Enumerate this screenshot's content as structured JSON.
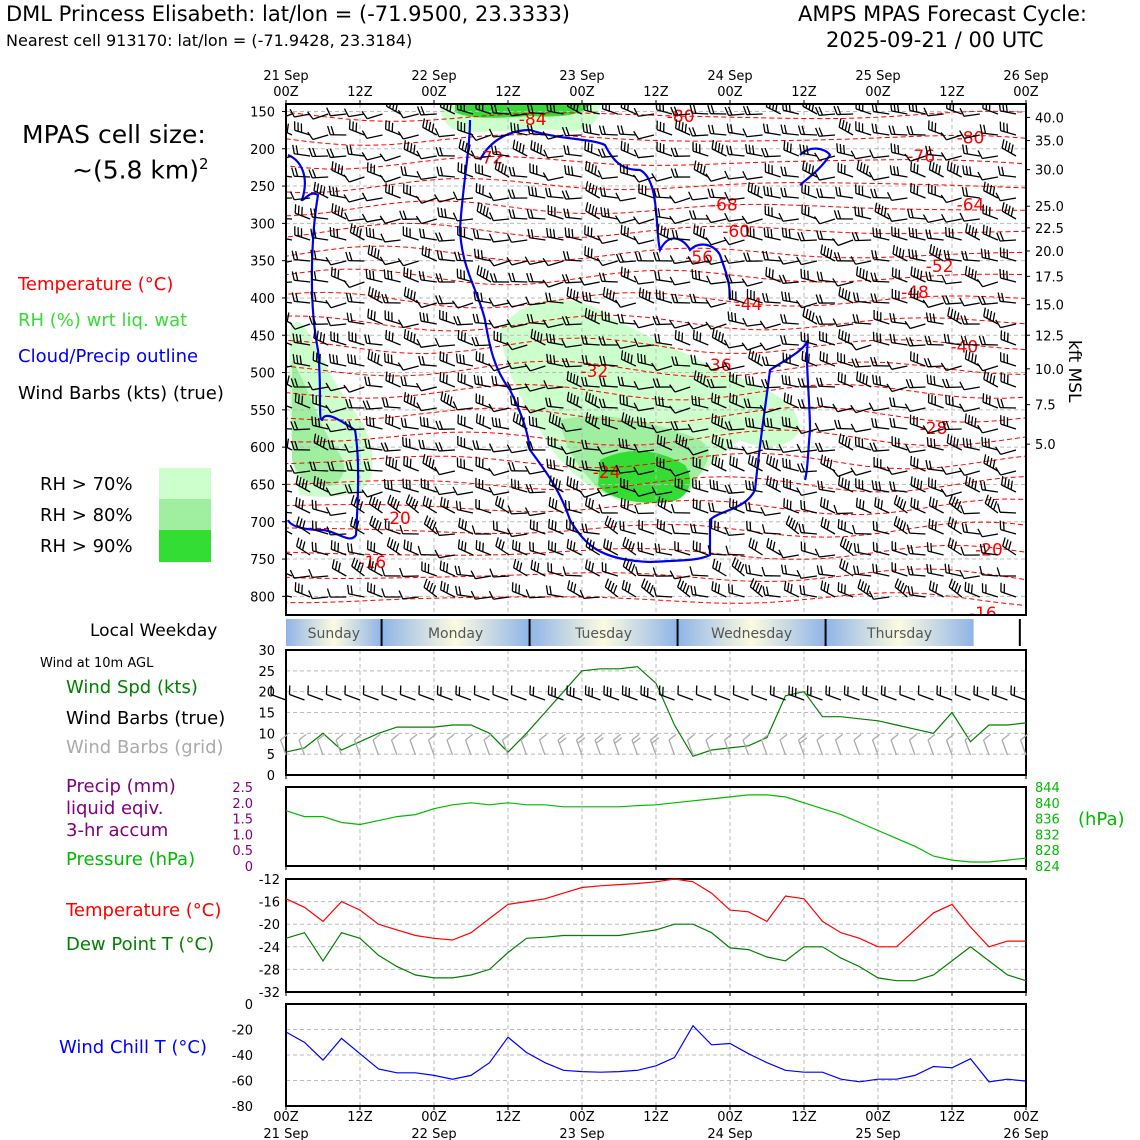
{
  "header": {
    "station": "DML Princess Elisabeth: lat/lon = (-71.9500, 23.3333)",
    "nearest": "Nearest cell 913170: lat/lon = (-71.9428, 23.3184)",
    "cycle_title": "AMPS MPAS Forecast Cycle:",
    "cycle_date": "2025-09-21 / 00 UTC"
  },
  "legend": {
    "cell_size_label": "MPAS cell size:",
    "cell_size_value": "~(5.8 km)",
    "cell_size_exp": "2",
    "temperature": "Temperature (°C)",
    "rh": "RH (%) wrt liq. wat",
    "cloud": "Cloud/Precip outline",
    "barbs": "Wind Barbs (kts) (true)",
    "rh70": "RH > 70%",
    "rh80": "RH > 80%",
    "rh90": "RH > 90%",
    "local_weekday": "Local Weekday",
    "wind_10m": "Wind at 10m AGL",
    "wind_spd": "Wind Spd (kts)",
    "wind_barbs_true": "Wind Barbs (true)",
    "wind_barbs_grid": "Wind Barbs (grid)",
    "precip1": "Precip (mm)",
    "precip2": "liquid eqiv.",
    "precip3": "3-hr accum",
    "pressure": "Pressure (hPa)",
    "pressure_unit": "(hPa)",
    "temp2": "Temperature (°C)",
    "dew": "Dew Point T (°C)",
    "windchill": "Wind Chill T (°C)",
    "kft": "kft MSL"
  },
  "colors": {
    "temp": "#ff0000",
    "rh70": "#ccffcc",
    "rh80": "#a0eea0",
    "rh90": "#33dd33",
    "cloud": "#0000ee",
    "wind": "#008000",
    "precip": "#800080",
    "pressure": "#00bb00",
    "dew": "#008000",
    "chill": "#0000ff"
  },
  "chart_data": [
    {
      "type": "heatmap",
      "title": "Vertical time section",
      "top_ticks": [
        {
          "l1": "21 Sep",
          "l2": "00Z",
          "h": 0
        },
        {
          "l1": "",
          "l2": "12Z",
          "h": 12
        },
        {
          "l1": "22 Sep",
          "l2": "00Z",
          "h": 24
        },
        {
          "l1": "",
          "l2": "12Z",
          "h": 36
        },
        {
          "l1": "23 Sep",
          "l2": "00Z",
          "h": 48
        },
        {
          "l1": "",
          "l2": "12Z",
          "h": 60
        },
        {
          "l1": "24 Sep",
          "l2": "00Z",
          "h": 72
        },
        {
          "l1": "",
          "l2": "12Z",
          "h": 84
        },
        {
          "l1": "25 Sep",
          "l2": "00Z",
          "h": 96
        },
        {
          "l1": "",
          "l2": "12Z",
          "h": 108
        },
        {
          "l1": "26 Sep",
          "l2": "00Z",
          "h": 120
        }
      ],
      "pressure_levels": [
        150,
        200,
        250,
        300,
        350,
        400,
        450,
        500,
        550,
        600,
        650,
        700,
        750,
        800
      ],
      "ylim_hpa": [
        140,
        825
      ],
      "kft_ticks": [
        {
          "label": "40.0",
          "p": 158
        },
        {
          "label": "35.0",
          "p": 189
        },
        {
          "label": "30.0",
          "p": 228
        },
        {
          "label": "25.0",
          "p": 277
        },
        {
          "label": "22.5",
          "p": 306
        },
        {
          "label": "20.0",
          "p": 337
        },
        {
          "label": "17.5",
          "p": 371
        },
        {
          "label": "15.0",
          "p": 409
        },
        {
          "label": "12.5",
          "p": 450
        },
        {
          "label": "10.0",
          "p": 495
        },
        {
          "label": "7.5",
          "p": 543
        },
        {
          "label": "5.0",
          "p": 596
        }
      ],
      "temp_labels": [
        {
          "text": "-84",
          "h": 40,
          "p": 160
        },
        {
          "text": "-80",
          "h": 64,
          "p": 156
        },
        {
          "text": "-80",
          "h": 111,
          "p": 185
        },
        {
          "text": "-76",
          "h": 103,
          "p": 210
        },
        {
          "text": "-72",
          "h": 33,
          "p": 212
        },
        {
          "text": "-68",
          "h": 71,
          "p": 275
        },
        {
          "text": "-64",
          "h": 111,
          "p": 275
        },
        {
          "text": "-60",
          "h": 73,
          "p": 310
        },
        {
          "text": "-56",
          "h": 67,
          "p": 345
        },
        {
          "text": "-52",
          "h": 106,
          "p": 357
        },
        {
          "text": "-48",
          "h": 102,
          "p": 392
        },
        {
          "text": "-44",
          "h": 75,
          "p": 408
        },
        {
          "text": "-40",
          "h": 110,
          "p": 465
        },
        {
          "text": "-36",
          "h": 70,
          "p": 490
        },
        {
          "text": "-32",
          "h": 50,
          "p": 498
        },
        {
          "text": "-28",
          "h": 105,
          "p": 574
        },
        {
          "text": "-24",
          "h": 52,
          "p": 633
        },
        {
          "text": "-20",
          "h": 18,
          "p": 695
        },
        {
          "text": "-20",
          "h": 114,
          "p": 737
        },
        {
          "text": "-16",
          "h": 14,
          "p": 754
        },
        {
          "text": "-16",
          "h": 113,
          "p": 822
        }
      ],
      "rh_legend": [
        "RH > 70%",
        "RH > 80%",
        "RH > 90%"
      ]
    },
    {
      "type": "line",
      "title": "Wind at 10m AGL",
      "ylim": [
        0,
        30
      ],
      "yticks": [
        0,
        5,
        10,
        15,
        20,
        25,
        30
      ],
      "hours": [
        0,
        3,
        6,
        9,
        12,
        15,
        18,
        21,
        24,
        27,
        30,
        33,
        36,
        39,
        42,
        45,
        48,
        51,
        54,
        57,
        60,
        63,
        66,
        69,
        72,
        75,
        78,
        81,
        84,
        87,
        90,
        93,
        96,
        99,
        102,
        105,
        108,
        111,
        114,
        117,
        120
      ],
      "series": [
        {
          "name": "Wind Spd (kts)",
          "values": [
            5.5,
            6.5,
            10,
            6,
            8,
            10,
            11.5,
            11.5,
            11.5,
            12,
            12,
            10,
            5.5,
            10,
            15,
            20,
            25,
            25.5,
            25.5,
            26,
            22,
            12,
            4.5,
            6,
            6.5,
            7,
            9,
            19,
            20,
            14,
            14,
            13.5,
            13,
            12,
            11,
            10,
            15,
            8,
            12,
            12,
            12.5
          ]
        }
      ]
    },
    {
      "type": "line",
      "title": "Precip and Pressure",
      "ylim_precip": [
        0,
        2.5
      ],
      "precip_ticks": [
        "0",
        "0.5",
        "1.0",
        "1.5",
        "2.0",
        "2.5"
      ],
      "ylim": [
        824,
        844
      ],
      "pressure_ticks": [
        "824",
        "828",
        "832",
        "836",
        "840",
        "844"
      ],
      "hours": [
        0,
        3,
        6,
        9,
        12,
        15,
        18,
        21,
        24,
        27,
        30,
        33,
        36,
        39,
        42,
        45,
        48,
        51,
        54,
        57,
        60,
        63,
        66,
        69,
        72,
        75,
        78,
        81,
        84,
        87,
        90,
        93,
        96,
        99,
        102,
        105,
        108,
        111,
        114,
        117,
        120
      ],
      "series": [
        {
          "name": "Precip (mm)",
          "values": []
        },
        {
          "name": "Pressure (hPa)",
          "values": [
            838,
            836.5,
            836.5,
            835,
            834.5,
            835.5,
            836.5,
            837,
            838.5,
            839.5,
            840,
            839.5,
            840,
            839.5,
            839.5,
            839,
            839,
            839,
            839,
            839.3,
            839.5,
            840,
            840.5,
            841,
            841.5,
            842,
            842,
            841.5,
            840,
            838.5,
            837,
            835,
            833,
            831,
            829,
            826.5,
            825.5,
            825,
            825,
            825.5,
            826
          ]
        }
      ]
    },
    {
      "type": "line",
      "title": "Temperature and Dew Point",
      "ylim": [
        -32,
        -12
      ],
      "yticks": [
        -32,
        -28,
        -24,
        -20,
        -16,
        -12
      ],
      "hours": [
        0,
        3,
        6,
        9,
        12,
        15,
        18,
        21,
        24,
        27,
        30,
        33,
        36,
        39,
        42,
        45,
        48,
        51,
        54,
        57,
        60,
        63,
        66,
        69,
        72,
        75,
        78,
        81,
        84,
        87,
        90,
        93,
        96,
        99,
        102,
        105,
        108,
        111,
        114,
        117,
        120
      ],
      "series": [
        {
          "name": "Temperature (°C)",
          "values": [
            -15.5,
            -17,
            -19.5,
            -16,
            -17.5,
            -20,
            -21,
            -22,
            -22.5,
            -22.8,
            -21.5,
            -19,
            -16.5,
            -16,
            -15.5,
            -14.5,
            -13.5,
            -13.2,
            -13,
            -12.8,
            -12.5,
            -12,
            -12.5,
            -14.5,
            -17.5,
            -17.8,
            -19.5,
            -15,
            -15.5,
            -19.5,
            -21.5,
            -22.5,
            -24,
            -24,
            -21,
            -18,
            -16.5,
            -20.5,
            -24,
            -23,
            -23
          ]
        },
        {
          "name": "Dew Point T (°C)",
          "values": [
            -22.5,
            -21.5,
            -26.5,
            -21.5,
            -22.5,
            -25.5,
            -27.5,
            -29,
            -29.5,
            -29.5,
            -29,
            -28,
            -25,
            -22.5,
            -22.3,
            -22,
            -22,
            -22,
            -22,
            -21.5,
            -21,
            -20,
            -20,
            -21.5,
            -24.2,
            -24.5,
            -25.8,
            -26.5,
            -24,
            -24,
            -26,
            -27.5,
            -29.5,
            -30,
            -30,
            -29,
            -26.5,
            -24,
            -26.5,
            -29,
            -30
          ]
        }
      ]
    },
    {
      "type": "line",
      "title": "Wind Chill",
      "ylim": [
        -80,
        0
      ],
      "yticks": [
        -80,
        -60,
        -40,
        -20,
        0
      ],
      "hours": [
        0,
        3,
        6,
        9,
        12,
        15,
        18,
        21,
        24,
        27,
        30,
        33,
        36,
        39,
        42,
        45,
        48,
        51,
        54,
        57,
        60,
        63,
        66,
        69,
        72,
        75,
        78,
        81,
        84,
        87,
        90,
        93,
        96,
        99,
        102,
        105,
        108,
        111,
        114,
        117,
        120
      ],
      "series": [
        {
          "name": "Wind Chill T (°C)",
          "values": [
            -22,
            -30,
            -44,
            -27,
            -39,
            -51,
            -54,
            -54,
            -56,
            -59,
            -56,
            -46,
            -26,
            -38,
            -46,
            -52,
            -53,
            -53.5,
            -53,
            -52,
            -48.5,
            -42,
            -17,
            -32,
            -31,
            -39,
            -46,
            -52,
            -53.5,
            -53.5,
            -59,
            -61,
            -59,
            -59,
            -56,
            -49,
            -50,
            -43,
            -61,
            -59,
            -60.5
          ]
        }
      ]
    }
  ],
  "weekdays": [
    "Sunday",
    "Monday",
    "Tuesday",
    "Wednesday",
    "Thursday"
  ],
  "bottom_ticks": [
    {
      "l1": "00Z",
      "l2": "21 Sep"
    },
    {
      "l1": "12Z",
      "l2": ""
    },
    {
      "l1": "00Z",
      "l2": "22 Sep"
    },
    {
      "l1": "12Z",
      "l2": ""
    },
    {
      "l1": "00Z",
      "l2": "23 Sep"
    },
    {
      "l1": "12Z",
      "l2": ""
    },
    {
      "l1": "00Z",
      "l2": "24 Sep"
    },
    {
      "l1": "12Z",
      "l2": ""
    },
    {
      "l1": "00Z",
      "l2": "25 Sep"
    },
    {
      "l1": "12Z",
      "l2": ""
    },
    {
      "l1": "00Z",
      "l2": "26 Sep"
    }
  ]
}
